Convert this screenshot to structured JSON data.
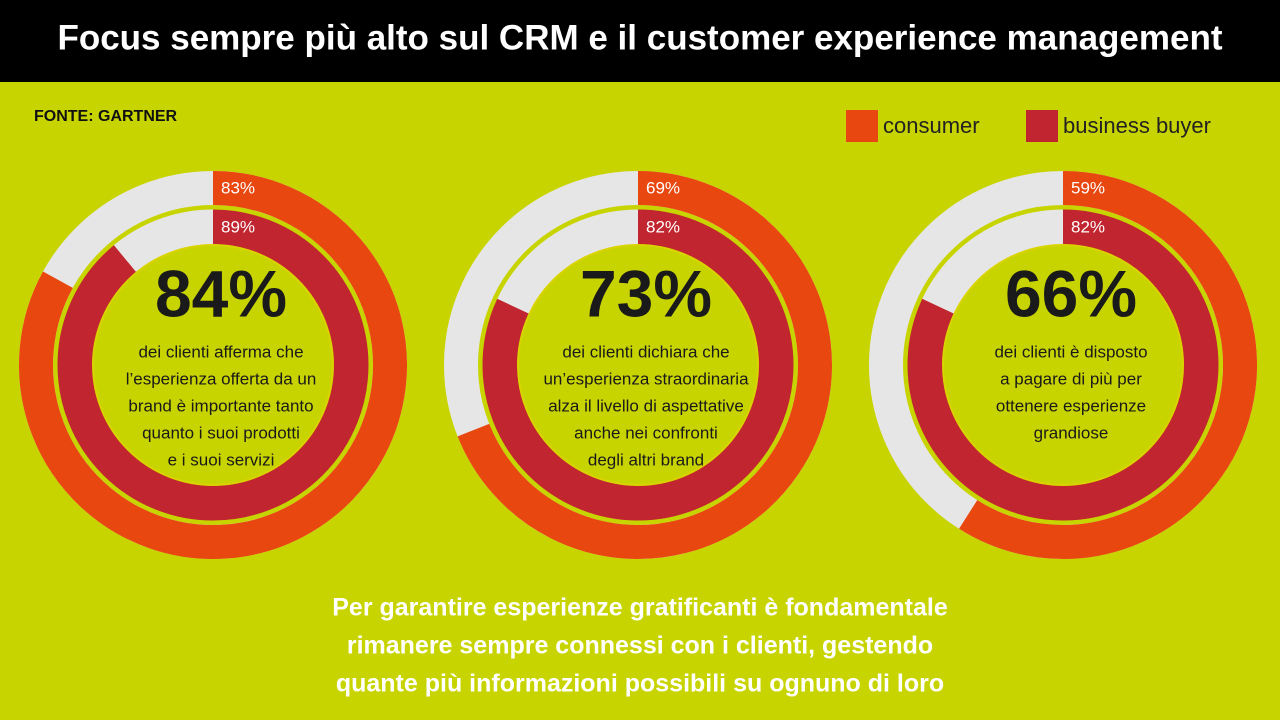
{
  "chart_data": {
    "type": "radial_bar",
    "title": "Focus sempre più alto sul CRM e il customer experience management",
    "source": "FONTE: GARTNER",
    "rlim": [
      0,
      100
    ],
    "series": [
      {
        "name": "consumer",
        "color": "#e8470f",
        "values": [
          83,
          69,
          59
        ],
        "value_labels": [
          "83%",
          "69%",
          "59%"
        ]
      },
      {
        "name": "business buyer",
        "color": "#c1252f",
        "values": [
          89,
          82,
          82
        ],
        "value_labels": [
          "89%",
          "82%",
          "82%"
        ]
      }
    ],
    "panels": [
      {
        "headline": "84%",
        "text": [
          "dei clienti afferma che",
          "l’esperienza offerta da un",
          "brand è importante tanto",
          "quanto i suoi prodotti",
          "e i suoi servizi"
        ]
      },
      {
        "headline": "73%",
        "text": [
          "dei clienti dichiara che",
          "un’esperienza straordinaria",
          "alza il livello di aspettative",
          "anche nei confronti",
          "degli altri brand"
        ]
      },
      {
        "headline": "66%",
        "text": [
          "dei clienti è disposto",
          "a pagare di più per",
          "ottenere esperienze",
          "grandiose"
        ]
      }
    ],
    "note": [
      "Per garantire esperienze gratificanti è fondamentale",
      "rimanere sempre connessi con i clienti, gestendo",
      "quante più informazioni possibili su ognuno di loro"
    ]
  }
}
